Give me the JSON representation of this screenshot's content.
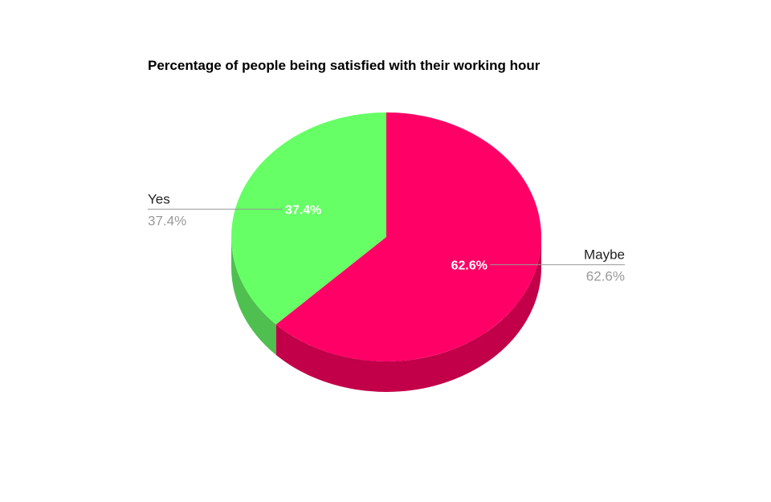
{
  "chart_data": {
    "type": "pie",
    "style": "3d",
    "title": "Percentage of people being satisfied with their working hour",
    "slices": [
      {
        "label": "Maybe",
        "value": 62.6,
        "slice_label": "62.6%",
        "legend_value": "62.6%",
        "color": "#ff0066",
        "side_color": "#c20049"
      },
      {
        "label": "Yes",
        "value": 37.4,
        "slice_label": "37.4%",
        "legend_value": "37.4%",
        "color": "#66ff66",
        "side_color": "#4fbf4f"
      }
    ],
    "legend": "callout-labels"
  }
}
